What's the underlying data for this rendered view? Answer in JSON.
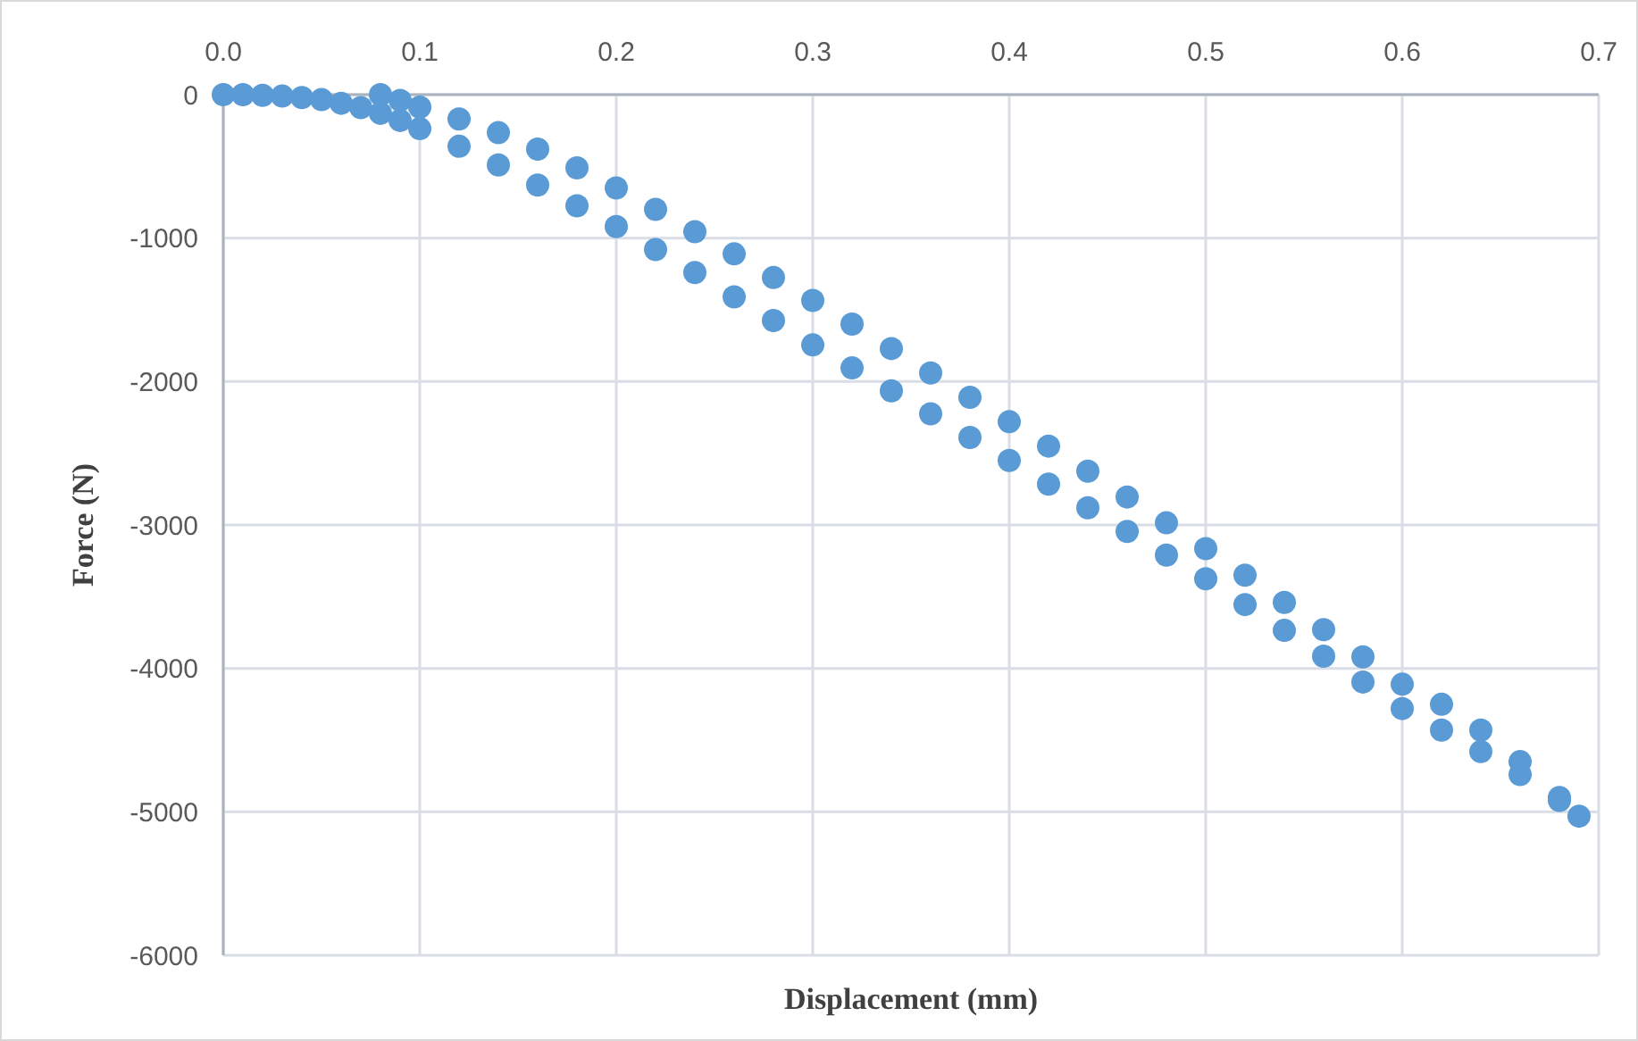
{
  "chart_data": {
    "type": "scatter",
    "xlabel": "Displacement (mm)",
    "ylabel": "Force (N)",
    "xlim": [
      0,
      0.7
    ],
    "ylim": [
      -6000,
      0
    ],
    "xticks": [
      {
        "value": 0,
        "label": "0.0"
      },
      0.1,
      0.2,
      0.3,
      0.4,
      0.5,
      0.6,
      0.7
    ],
    "yticks": [
      -6000,
      -5000,
      -4000,
      -3000,
      -2000,
      -1000,
      0
    ],
    "grid": true,
    "marker": "circle",
    "series": [
      {
        "color": "#5b9bd5",
        "x": [
          0,
          0.01,
          0.02,
          0.03,
          0.04,
          0.05,
          0.06,
          0.07,
          0.08,
          0.09,
          0.1,
          0.12,
          0.14,
          0.16,
          0.18,
          0.2,
          0.22,
          0.24,
          0.26,
          0.28,
          0.3,
          0.32,
          0.34,
          0.36,
          0.38,
          0.4,
          0.42,
          0.44,
          0.46,
          0.48,
          0.5,
          0.52,
          0.54,
          0.56,
          0.58,
          0.6,
          0.62,
          0.64,
          0.66,
          0.68,
          0.69,
          0.68,
          0.66,
          0.64,
          0.62,
          0.6,
          0.58,
          0.56,
          0.54,
          0.52,
          0.5,
          0.48,
          0.46,
          0.44,
          0.42,
          0.4,
          0.38,
          0.36,
          0.34,
          0.32,
          0.3,
          0.28,
          0.26,
          0.24,
          0.22,
          0.2,
          0.18,
          0.16,
          0.14,
          0.12,
          0.1,
          0.09,
          0.08
        ],
        "values": [
          0,
          0,
          -5,
          -10,
          -20,
          -35,
          -60,
          -90,
          -130,
          -180,
          -237,
          -360,
          -490,
          -630,
          -775,
          -920,
          -1080,
          -1240,
          -1410,
          -1575,
          -1745,
          -1905,
          -2065,
          -2225,
          -2390,
          -2550,
          -2715,
          -2880,
          -3045,
          -3210,
          -3375,
          -3555,
          -3735,
          -3915,
          -4095,
          -4280,
          -4430,
          -4580,
          -4740,
          -4920,
          -5030,
          -4900,
          -4650,
          -4430,
          -4250,
          -4110,
          -3920,
          -3730,
          -3540,
          -3350,
          -3165,
          -2985,
          -2805,
          -2625,
          -2450,
          -2280,
          -2110,
          -1940,
          -1770,
          -1600,
          -1435,
          -1275,
          -1110,
          -955,
          -800,
          -650,
          -510,
          -380,
          -265,
          -170,
          -87,
          -40,
          0
        ]
      }
    ]
  }
}
